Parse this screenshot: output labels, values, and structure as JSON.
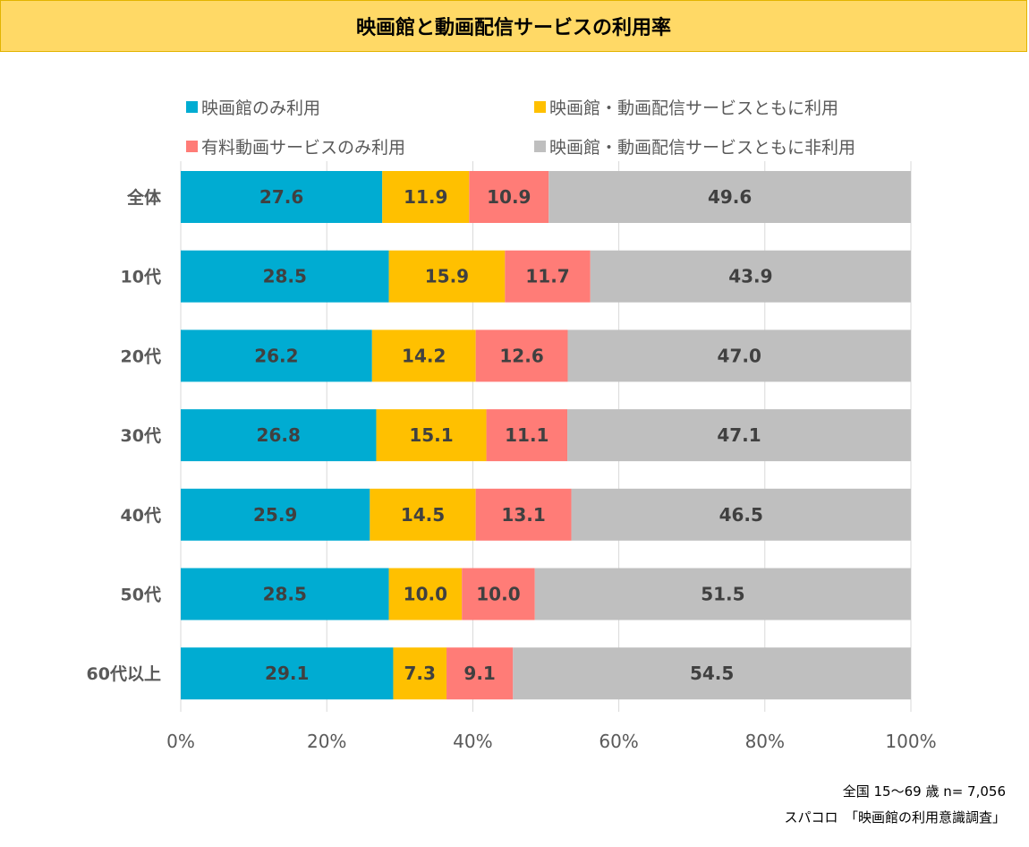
{
  "title": "映画館と動画配信サービスの利用率",
  "legend": [
    {
      "label": "映画館のみ利用",
      "color": "#00ACD2"
    },
    {
      "label": "映画館・動画配信サービスともに利用",
      "color": "#FFC000"
    },
    {
      "label": "有料動画サービスのみ利用",
      "color": "#FF7C77"
    },
    {
      "label": "映画館・動画配信サービスともに非利用",
      "color": "#BFBFBF"
    }
  ],
  "chart_data": {
    "type": "bar",
    "orientation": "horizontal",
    "stacked": "percent",
    "categories": [
      "全体",
      "10代",
      "20代",
      "30代",
      "40代",
      "50代",
      "60代以上"
    ],
    "series": [
      {
        "name": "映画館のみ利用",
        "color": "#00ACD2",
        "values": [
          27.6,
          28.5,
          26.2,
          26.8,
          25.9,
          28.5,
          29.1
        ]
      },
      {
        "name": "映画館・動画配信サービスともに利用",
        "color": "#FFC000",
        "values": [
          11.9,
          15.9,
          14.2,
          15.1,
          14.5,
          10.0,
          7.3
        ]
      },
      {
        "name": "有料動画サービスのみ利用",
        "color": "#FF7C77",
        "values": [
          10.9,
          11.7,
          12.6,
          11.1,
          13.1,
          10.0,
          9.1
        ]
      },
      {
        "name": "映画館・動画配信サービスともに非利用",
        "color": "#BFBFBF",
        "values": [
          49.6,
          43.9,
          47.0,
          47.1,
          46.5,
          51.5,
          54.5
        ]
      }
    ],
    "x_ticks": [
      "0%",
      "20%",
      "40%",
      "60%",
      "80%",
      "100%"
    ],
    "xlim": [
      0,
      100
    ],
    "grid": true,
    "legend_position": "top"
  },
  "footnote": {
    "sample": "全国 15～69 歳 n= 7,056",
    "source": "スパコロ　「映画館の利用意識調査」"
  }
}
